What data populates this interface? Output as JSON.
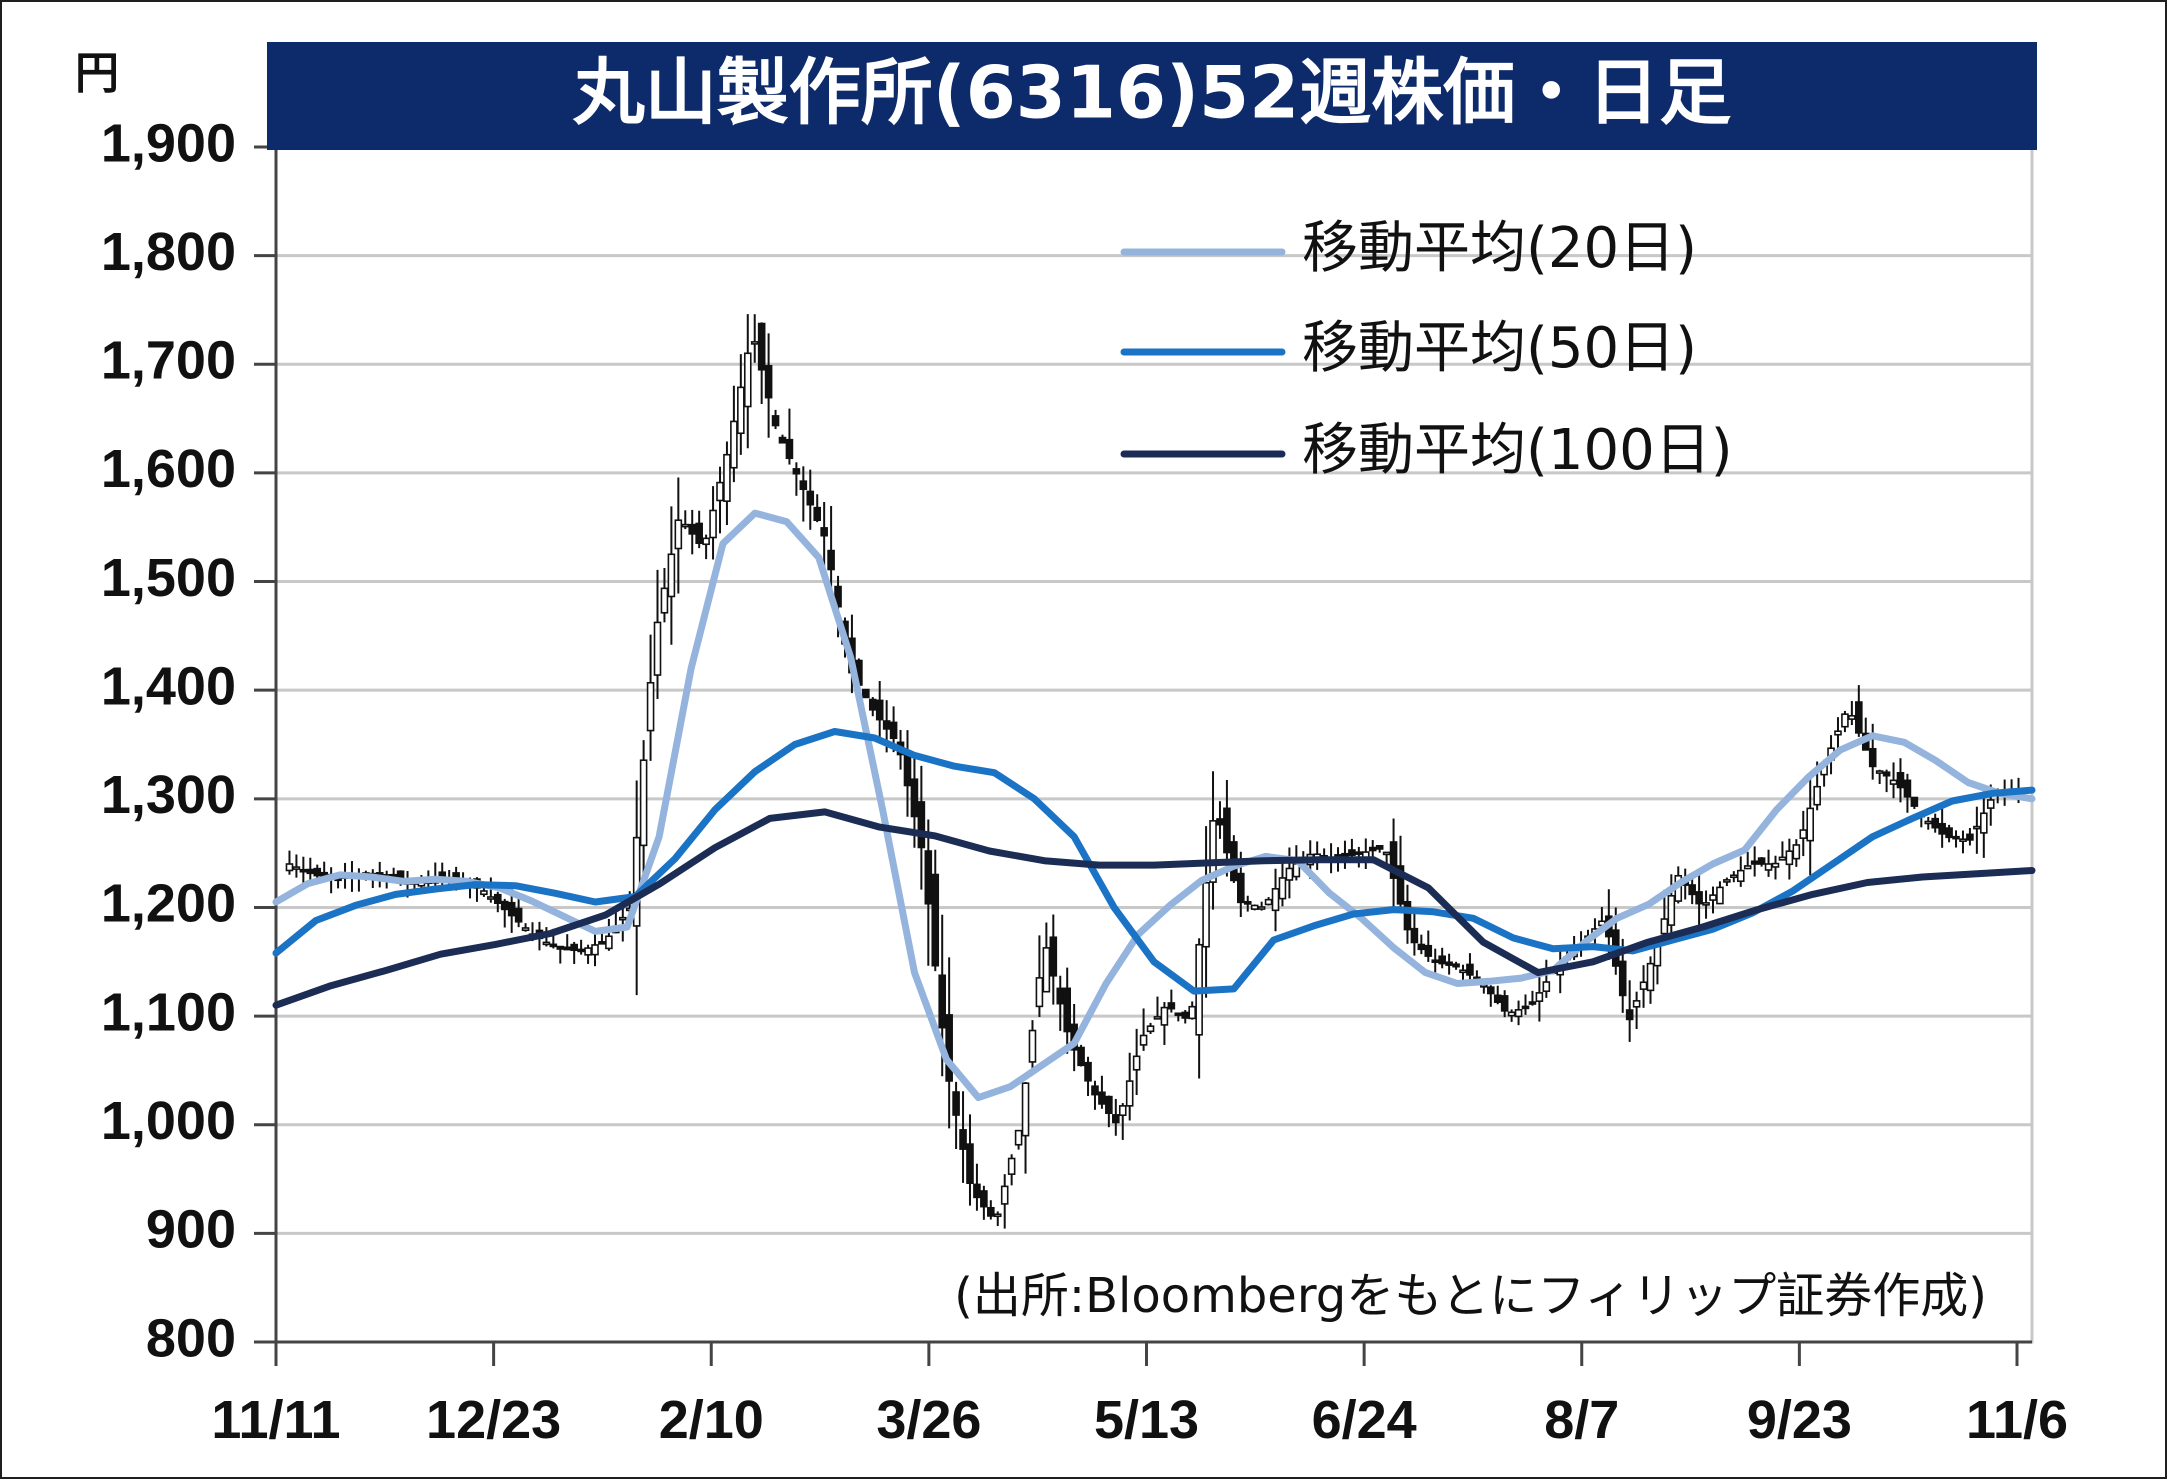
{
  "chart_data": {
    "type": "candlestick",
    "title": "丸山製作所(6316)52週株価・日足",
    "ylabel": "円",
    "ylim": [
      800,
      1900
    ],
    "y_ticks": [
      "1,900",
      "1,800",
      "1,700",
      "1,600",
      "1,500",
      "1,400",
      "1,300",
      "1,200",
      "1,100",
      "1,000",
      "900",
      "800"
    ],
    "x_ticks": [
      "11/11",
      "12/23",
      "2/10",
      "3/26",
      "5/13",
      "6/24",
      "8/7",
      "9/23",
      "11/6"
    ],
    "grid": true,
    "legend_position": "top-right",
    "source": "(出所:Bloombergをもとにフィリップ証券作成)",
    "price": [
      1240,
      1230,
      1225,
      1232,
      1230,
      1222,
      1228,
      1225,
      1215,
      1195,
      1175,
      1162,
      1160,
      1170,
      1200,
      1450,
      1560,
      1530,
      1620,
      1730,
      1640,
      1590,
      1540,
      1420,
      1380,
      1350,
      1250,
      1050,
      940,
      910,
      1000,
      1170,
      1080,
      1030,
      1000,
      1080,
      1110,
      1095,
      1295,
      1205,
      1200,
      1235,
      1250,
      1245,
      1250,
      1255,
      1172,
      1150,
      1145,
      1130,
      1102,
      1110,
      1145,
      1165,
      1190,
      1095,
      1155,
      1230,
      1200,
      1225,
      1240,
      1240,
      1260,
      1330,
      1385,
      1330,
      1315,
      1285,
      1265,
      1262,
      1305,
      1308
    ],
    "series": [
      {
        "name": "移動平均(20日)",
        "color": "#94b3dd",
        "values": [
          1205,
          1222,
          1230,
          1228,
          1224,
          1226,
          1224,
          1218,
          1206,
          1192,
          1178,
          1182,
          1265,
          1420,
          1535,
          1563,
          1555,
          1522,
          1430,
          1290,
          1140,
          1060,
          1025,
          1035,
          1055,
          1075,
          1130,
          1175,
          1202,
          1225,
          1238,
          1247,
          1243,
          1213,
          1190,
          1163,
          1140,
          1130,
          1132,
          1135,
          1142,
          1168,
          1190,
          1203,
          1223,
          1240,
          1253,
          1290,
          1320,
          1345,
          1358,
          1352,
          1335,
          1315,
          1305,
          1300
        ]
      },
      {
        "name": "移動平均(50日)",
        "color": "#1a73c4",
        "values": [
          1158,
          1188,
          1202,
          1212,
          1217,
          1221,
          1220,
          1213,
          1205,
          1210,
          1245,
          1290,
          1325,
          1350,
          1362,
          1356,
          1340,
          1330,
          1324,
          1300,
          1265,
          1200,
          1150,
          1123,
          1125,
          1170,
          1183,
          1194,
          1198,
          1196,
          1190,
          1172,
          1162,
          1164,
          1160,
          1170,
          1180,
          1195,
          1215,
          1240,
          1265,
          1282,
          1298,
          1305,
          1308
        ]
      },
      {
        "name": "移動平均(100日)",
        "color": "#1b2c55",
        "values": [
          1110,
          1128,
          1142,
          1157,
          1166,
          1176,
          1193,
          1222,
          1255,
          1282,
          1288,
          1274,
          1266,
          1252,
          1243,
          1239,
          1239,
          1241,
          1243,
          1244,
          1244,
          1218,
          1168,
          1140,
          1150,
          1168,
          1182,
          1198,
          1212,
          1223,
          1228,
          1231,
          1234
        ]
      }
    ]
  }
}
